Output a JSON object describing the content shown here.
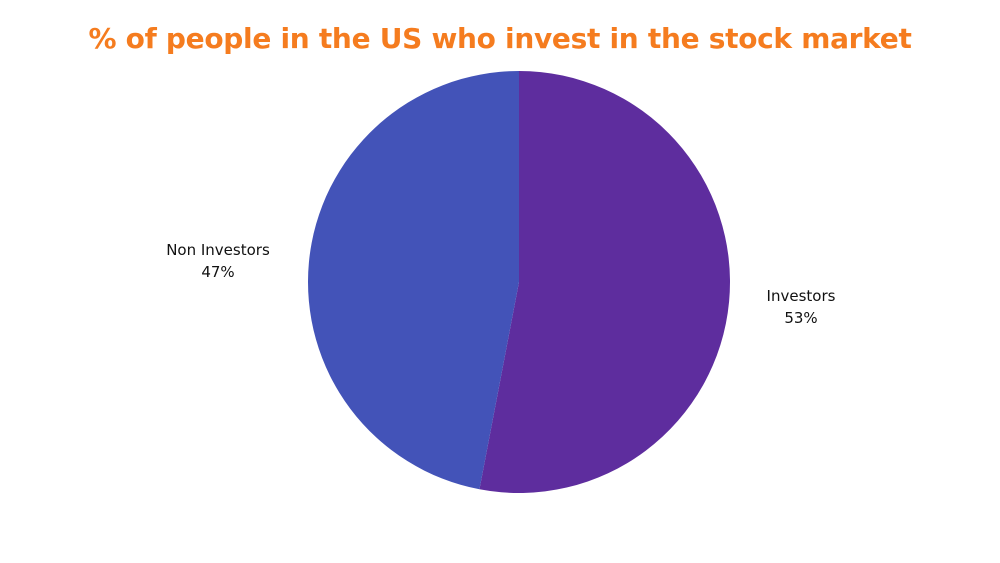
{
  "chart_data": {
    "type": "pie",
    "title": "% of people in the US who invest in the stock market",
    "slices": [
      {
        "label": "Investors",
        "value": 53,
        "value_label": "53%",
        "color": "#5e2d9e"
      },
      {
        "label": "Non Investors",
        "value": 47,
        "value_label": "47%",
        "color": "#4353b8"
      }
    ],
    "legend": "none"
  }
}
